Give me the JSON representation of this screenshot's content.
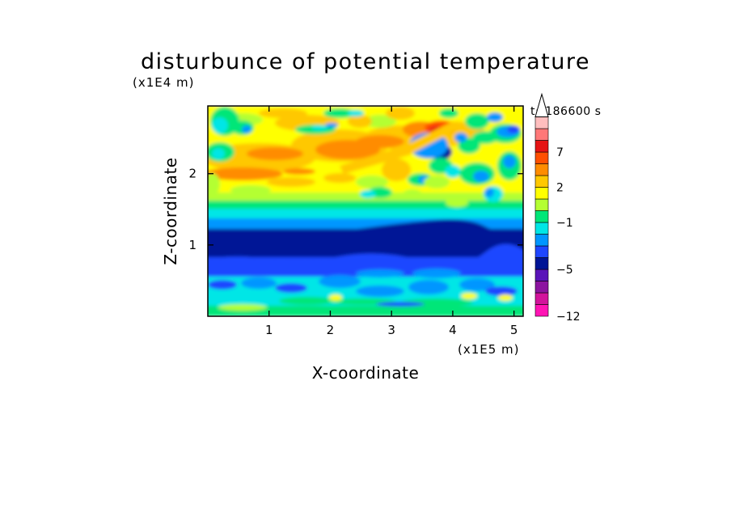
{
  "chart_data": {
    "type": "heatmap",
    "title": "disturbunce of potential temperature",
    "xlabel": "X-coordinate",
    "ylabel": "Z-coordinate",
    "x_unit": "(x1E5 m)",
    "y_unit": "(x1E4 m)",
    "time_label": "t=186600 s",
    "xlim": [
      0,
      5.15
    ],
    "ylim": [
      0,
      2.95
    ],
    "x_ticks": [
      "1",
      "2",
      "3",
      "4",
      "5"
    ],
    "x_tick_values": [
      1,
      2,
      3,
      4,
      5
    ],
    "y_ticks": [
      "1",
      "2"
    ],
    "y_tick_values": [
      1,
      2
    ],
    "colorbar": {
      "levels_bottom_to_top": [
        -12,
        -11,
        -9,
        -7,
        -5,
        -4,
        -3,
        -2,
        -1,
        0,
        1,
        2,
        3,
        5,
        7,
        9,
        11
      ],
      "colors_bottom_to_top": [
        "#ff14b4",
        "#d2149b",
        "#8c14a0",
        "#5a14b9",
        "#001496",
        "#1e46ff",
        "#0096ff",
        "#00e6e6",
        "#00e678",
        "#b4ff32",
        "#ffff00",
        "#ffc800",
        "#ff8c00",
        "#ff5000",
        "#e61414",
        "#ff7878",
        "#ffbebe"
      ],
      "labels": [
        "7",
        "2",
        "-1",
        "-5",
        "-12"
      ],
      "label_values": [
        7,
        2,
        -1,
        -5,
        -12
      ],
      "extend_top": true
    },
    "field_bands_bottom_to_top": [
      {
        "z": [
          0.0,
          0.15
        ],
        "level": "cyan-green"
      },
      {
        "z": [
          0.15,
          0.55
        ],
        "level": "cyan"
      },
      {
        "z": [
          0.55,
          0.9
        ],
        "level": "blue"
      },
      {
        "z": [
          0.9,
          1.25
        ],
        "level": "dark-blue"
      },
      {
        "z": [
          1.25,
          1.5
        ],
        "level": "cyan-green"
      },
      {
        "z": [
          1.5,
          2.95
        ],
        "level": "yellow-orange with red/blue wave cells"
      }
    ]
  }
}
